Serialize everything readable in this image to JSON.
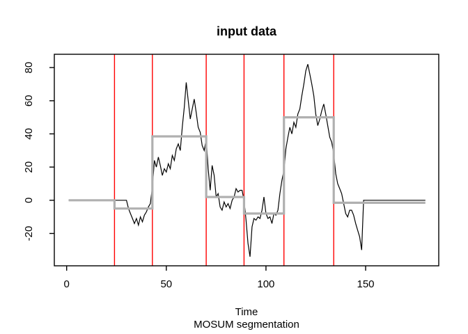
{
  "colors": {
    "background": "#ffffff",
    "data_line": "#000000",
    "segment_mean": "#b0b0b0",
    "changepoint": "#ff0000",
    "axis": "#000000",
    "text": "#000000"
  },
  "chart_data": {
    "type": "line",
    "title": "input data",
    "xlabel": "Time",
    "sublabel": "MOSUM segmentation",
    "xlim": [
      -6.2,
      186.7
    ],
    "ylim": [
      -39.5,
      88
    ],
    "x_ticks": [
      0,
      50,
      100,
      150
    ],
    "y_ticks": [
      -20,
      0,
      20,
      40,
      60,
      80
    ],
    "grid": false,
    "legend": "none",
    "series": [
      {
        "name": "input-data",
        "color": "#000000",
        "x_start": 1,
        "y": [
          0,
          0,
          0,
          0,
          0,
          0,
          0,
          0,
          0,
          0,
          0,
          0,
          0,
          0,
          0,
          0,
          0,
          0,
          0,
          0,
          0,
          0,
          0,
          0,
          0,
          0,
          0,
          0,
          0,
          0,
          -5,
          -8,
          -11,
          -14,
          -11,
          -15,
          -10,
          -13,
          -9,
          -7,
          -4,
          -2,
          8,
          24,
          20,
          26,
          21,
          15,
          19,
          17,
          22,
          19,
          27,
          24,
          31,
          34,
          30,
          44,
          56,
          71,
          60,
          49,
          55,
          61,
          53,
          44,
          41,
          33,
          30,
          37,
          19,
          6,
          21,
          15,
          2,
          4,
          -4,
          -6,
          -1,
          -4,
          -2,
          -5,
          0,
          2,
          7,
          5,
          6,
          6,
          0,
          -12,
          -26,
          -34,
          -16,
          -11,
          -12,
          -10,
          -11,
          -6,
          2,
          -8,
          -11,
          -10,
          -14,
          -8,
          -9,
          -6,
          4,
          12,
          18,
          31,
          38,
          44,
          40,
          47,
          44,
          52,
          55,
          63,
          70,
          78,
          82,
          76,
          70,
          63,
          52,
          45,
          49,
          54,
          58,
          52,
          45,
          38,
          35,
          28,
          16,
          10,
          7,
          4,
          -2,
          -8,
          -10,
          -6,
          -6,
          -9,
          -14,
          -18,
          -22,
          -30,
          0,
          0,
          0,
          0,
          0,
          0,
          0,
          0,
          0,
          0,
          0,
          0,
          0,
          0,
          0,
          0,
          0,
          0,
          0,
          0,
          0,
          0,
          0,
          0,
          0,
          0,
          0,
          0,
          0,
          0,
          0,
          0
        ]
      }
    ],
    "segment_means": [
      {
        "start": 1,
        "end": 24,
        "mean": 0
      },
      {
        "start": 24,
        "end": 43,
        "mean": -5
      },
      {
        "start": 43,
        "end": 70,
        "mean": 38.5
      },
      {
        "start": 70,
        "end": 89,
        "mean": 2
      },
      {
        "start": 89,
        "end": 109,
        "mean": -8
      },
      {
        "start": 109,
        "end": 134,
        "mean": 50
      },
      {
        "start": 134,
        "end": 180,
        "mean": -1.5
      }
    ],
    "changepoints": [
      24,
      43,
      70,
      89,
      109,
      134
    ]
  }
}
